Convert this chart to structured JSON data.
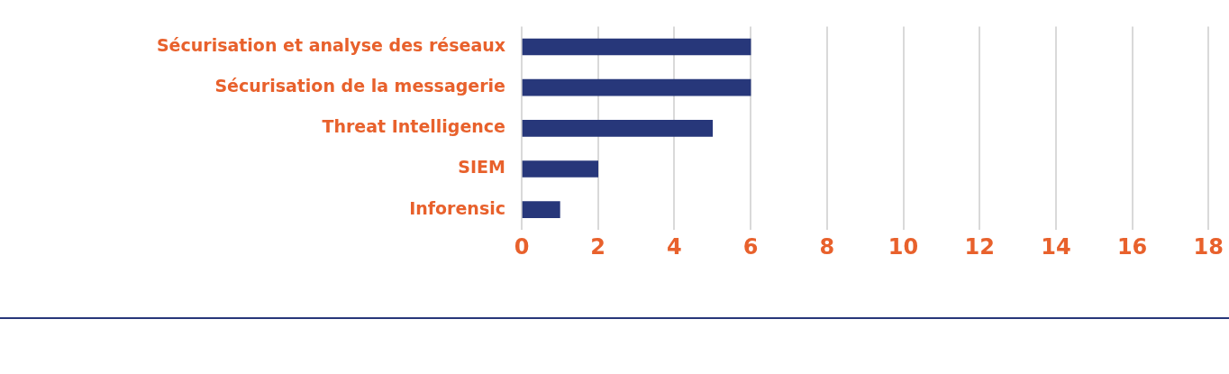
{
  "chart_data": {
    "type": "bar",
    "orientation": "horizontal",
    "categories": [
      "Sécurisation et analyse des réseaux",
      "Sécurisation de la messagerie",
      "Threat Intelligence",
      "SIEM",
      "Inforensic"
    ],
    "values": [
      6,
      6,
      5,
      2,
      1
    ],
    "color": "#27377a",
    "xlim": [
      0,
      18
    ],
    "xticks": [
      0,
      2,
      4,
      6,
      8,
      10,
      12,
      14,
      16,
      18
    ],
    "grid": "x"
  }
}
